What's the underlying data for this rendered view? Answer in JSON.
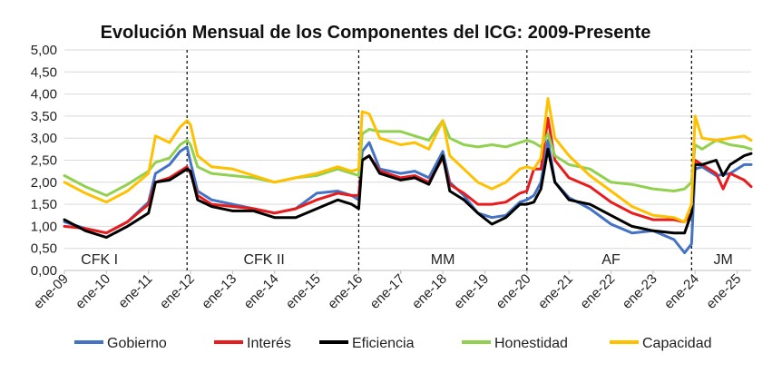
{
  "chart_data": {
    "type": "line",
    "title": "Evolución Mensual de los Componentes del ICG: 2009-Presente",
    "ylim": [
      0,
      5
    ],
    "yticks": [
      "0,00",
      "0,50",
      "1,00",
      "1,50",
      "2,00",
      "2,50",
      "3,00",
      "3,50",
      "4,00",
      "4,50",
      "5,00"
    ],
    "xlim": [
      0,
      196
    ],
    "xticks": [
      {
        "label": "ene-09",
        "x": 0
      },
      {
        "label": "ene-10",
        "x": 12
      },
      {
        "label": "ene-11",
        "x": 24
      },
      {
        "label": "ene-12",
        "x": 36
      },
      {
        "label": "ene-13",
        "x": 48
      },
      {
        "label": "ene-14",
        "x": 60
      },
      {
        "label": "ene-15",
        "x": 72
      },
      {
        "label": "ene-16",
        "x": 84
      },
      {
        "label": "ene-17",
        "x": 96
      },
      {
        "label": "ene-18",
        "x": 108
      },
      {
        "label": "ene-19",
        "x": 120
      },
      {
        "label": "ene-20",
        "x": 132
      },
      {
        "label": "ene-21",
        "x": 144
      },
      {
        "label": "ene-22",
        "x": 156
      },
      {
        "label": "ene-23",
        "x": 168
      },
      {
        "label": "ene-24",
        "x": 180
      },
      {
        "label": "ene-25",
        "x": 192
      }
    ],
    "grid": true,
    "legend_position": "bottom",
    "period_dividers": [
      35,
      84,
      132,
      179
    ],
    "periods": [
      {
        "label": "CFK I",
        "x": 10
      },
      {
        "label": "CFK II",
        "x": 57
      },
      {
        "label": "MM",
        "x": 108
      },
      {
        "label": "AF",
        "x": 156
      },
      {
        "label": "JM",
        "x": 188
      }
    ],
    "series": [
      {
        "name": "Gobierno",
        "color": "#4472C4",
        "points": [
          [
            0,
            1.1
          ],
          [
            6,
            0.95
          ],
          [
            12,
            0.85
          ],
          [
            18,
            1.1
          ],
          [
            24,
            1.55
          ],
          [
            26,
            2.2
          ],
          [
            30,
            2.4
          ],
          [
            33,
            2.7
          ],
          [
            35,
            2.8
          ],
          [
            36,
            2.45
          ],
          [
            38,
            1.8
          ],
          [
            42,
            1.6
          ],
          [
            48,
            1.5
          ],
          [
            54,
            1.4
          ],
          [
            60,
            1.3
          ],
          [
            66,
            1.4
          ],
          [
            72,
            1.75
          ],
          [
            78,
            1.8
          ],
          [
            82,
            1.7
          ],
          [
            84,
            1.6
          ],
          [
            85,
            2.7
          ],
          [
            87,
            2.9
          ],
          [
            90,
            2.3
          ],
          [
            96,
            2.2
          ],
          [
            100,
            2.25
          ],
          [
            104,
            2.1
          ],
          [
            108,
            2.7
          ],
          [
            110,
            2.0
          ],
          [
            114,
            1.7
          ],
          [
            118,
            1.3
          ],
          [
            122,
            1.2
          ],
          [
            126,
            1.25
          ],
          [
            130,
            1.55
          ],
          [
            132,
            1.6
          ],
          [
            134,
            1.7
          ],
          [
            136,
            2.0
          ],
          [
            138,
            2.95
          ],
          [
            140,
            2.0
          ],
          [
            144,
            1.65
          ],
          [
            150,
            1.4
          ],
          [
            156,
            1.05
          ],
          [
            162,
            0.85
          ],
          [
            168,
            0.9
          ],
          [
            174,
            0.7
          ],
          [
            177,
            0.4
          ],
          [
            179,
            0.6
          ],
          [
            180,
            2.3
          ],
          [
            182,
            2.35
          ],
          [
            186,
            2.15
          ],
          [
            190,
            2.2
          ],
          [
            194,
            2.4
          ],
          [
            196,
            2.4
          ]
        ]
      },
      {
        "name": "Interés",
        "color": "#E81C1C",
        "points": [
          [
            0,
            1.0
          ],
          [
            6,
            0.95
          ],
          [
            12,
            0.85
          ],
          [
            18,
            1.1
          ],
          [
            24,
            1.5
          ],
          [
            26,
            2.0
          ],
          [
            30,
            2.1
          ],
          [
            33,
            2.25
          ],
          [
            35,
            2.35
          ],
          [
            36,
            2.2
          ],
          [
            38,
            1.7
          ],
          [
            42,
            1.5
          ],
          [
            48,
            1.45
          ],
          [
            54,
            1.4
          ],
          [
            60,
            1.3
          ],
          [
            66,
            1.4
          ],
          [
            72,
            1.6
          ],
          [
            78,
            1.75
          ],
          [
            82,
            1.7
          ],
          [
            84,
            1.7
          ],
          [
            85,
            2.5
          ],
          [
            87,
            2.6
          ],
          [
            90,
            2.25
          ],
          [
            96,
            2.1
          ],
          [
            100,
            2.15
          ],
          [
            104,
            2.0
          ],
          [
            108,
            2.55
          ],
          [
            110,
            1.95
          ],
          [
            114,
            1.75
          ],
          [
            118,
            1.5
          ],
          [
            122,
            1.5
          ],
          [
            126,
            1.55
          ],
          [
            130,
            1.75
          ],
          [
            132,
            1.8
          ],
          [
            134,
            2.3
          ],
          [
            136,
            2.3
          ],
          [
            138,
            3.45
          ],
          [
            140,
            2.5
          ],
          [
            144,
            2.1
          ],
          [
            150,
            1.9
          ],
          [
            156,
            1.55
          ],
          [
            162,
            1.3
          ],
          [
            168,
            1.15
          ],
          [
            174,
            1.15
          ],
          [
            177,
            1.1
          ],
          [
            179,
            1.3
          ],
          [
            180,
            2.5
          ],
          [
            182,
            2.4
          ],
          [
            186,
            2.2
          ],
          [
            188,
            1.85
          ],
          [
            190,
            2.2
          ],
          [
            194,
            2.05
          ],
          [
            196,
            1.9
          ]
        ]
      },
      {
        "name": "Eficiencia",
        "color": "#000000",
        "points": [
          [
            0,
            1.15
          ],
          [
            6,
            0.9
          ],
          [
            12,
            0.75
          ],
          [
            18,
            1.0
          ],
          [
            24,
            1.3
          ],
          [
            26,
            2.0
          ],
          [
            30,
            2.05
          ],
          [
            33,
            2.2
          ],
          [
            35,
            2.3
          ],
          [
            36,
            2.25
          ],
          [
            38,
            1.6
          ],
          [
            42,
            1.45
          ],
          [
            48,
            1.35
          ],
          [
            54,
            1.35
          ],
          [
            60,
            1.2
          ],
          [
            66,
            1.2
          ],
          [
            72,
            1.4
          ],
          [
            78,
            1.6
          ],
          [
            82,
            1.5
          ],
          [
            84,
            1.4
          ],
          [
            85,
            2.5
          ],
          [
            87,
            2.6
          ],
          [
            90,
            2.2
          ],
          [
            96,
            2.05
          ],
          [
            100,
            2.1
          ],
          [
            104,
            1.95
          ],
          [
            108,
            2.6
          ],
          [
            110,
            1.8
          ],
          [
            114,
            1.6
          ],
          [
            118,
            1.3
          ],
          [
            122,
            1.05
          ],
          [
            126,
            1.2
          ],
          [
            130,
            1.5
          ],
          [
            132,
            1.5
          ],
          [
            134,
            1.55
          ],
          [
            136,
            1.85
          ],
          [
            138,
            2.75
          ],
          [
            140,
            2.0
          ],
          [
            144,
            1.6
          ],
          [
            150,
            1.5
          ],
          [
            156,
            1.25
          ],
          [
            162,
            1.0
          ],
          [
            168,
            0.9
          ],
          [
            174,
            0.85
          ],
          [
            177,
            0.85
          ],
          [
            179,
            1.3
          ],
          [
            180,
            2.4
          ],
          [
            182,
            2.4
          ],
          [
            186,
            2.5
          ],
          [
            188,
            2.15
          ],
          [
            190,
            2.4
          ],
          [
            194,
            2.6
          ],
          [
            196,
            2.65
          ]
        ]
      },
      {
        "name": "Honestidad",
        "color": "#92D050",
        "points": [
          [
            0,
            2.15
          ],
          [
            6,
            1.9
          ],
          [
            12,
            1.7
          ],
          [
            18,
            1.95
          ],
          [
            24,
            2.25
          ],
          [
            26,
            2.45
          ],
          [
            30,
            2.55
          ],
          [
            33,
            2.85
          ],
          [
            35,
            2.95
          ],
          [
            36,
            2.85
          ],
          [
            38,
            2.35
          ],
          [
            42,
            2.2
          ],
          [
            48,
            2.15
          ],
          [
            54,
            2.1
          ],
          [
            60,
            2.0
          ],
          [
            66,
            2.1
          ],
          [
            72,
            2.15
          ],
          [
            78,
            2.3
          ],
          [
            82,
            2.2
          ],
          [
            84,
            2.15
          ],
          [
            85,
            3.1
          ],
          [
            87,
            3.2
          ],
          [
            90,
            3.15
          ],
          [
            96,
            3.15
          ],
          [
            100,
            3.05
          ],
          [
            104,
            2.95
          ],
          [
            108,
            3.4
          ],
          [
            110,
            3.0
          ],
          [
            114,
            2.85
          ],
          [
            118,
            2.8
          ],
          [
            122,
            2.85
          ],
          [
            126,
            2.8
          ],
          [
            130,
            2.9
          ],
          [
            132,
            2.95
          ],
          [
            134,
            2.9
          ],
          [
            136,
            2.8
          ],
          [
            138,
            3.1
          ],
          [
            140,
            2.6
          ],
          [
            144,
            2.4
          ],
          [
            150,
            2.3
          ],
          [
            156,
            2.0
          ],
          [
            162,
            1.95
          ],
          [
            168,
            1.85
          ],
          [
            174,
            1.8
          ],
          [
            177,
            1.85
          ],
          [
            179,
            2.0
          ],
          [
            180,
            2.85
          ],
          [
            182,
            2.75
          ],
          [
            186,
            2.95
          ],
          [
            190,
            2.85
          ],
          [
            194,
            2.8
          ],
          [
            196,
            2.75
          ]
        ]
      },
      {
        "name": "Capacidad",
        "color": "#FFC000",
        "points": [
          [
            0,
            2.0
          ],
          [
            6,
            1.75
          ],
          [
            12,
            1.55
          ],
          [
            18,
            1.8
          ],
          [
            24,
            2.2
          ],
          [
            26,
            3.05
          ],
          [
            30,
            2.9
          ],
          [
            33,
            3.25
          ],
          [
            35,
            3.4
          ],
          [
            36,
            3.3
          ],
          [
            38,
            2.6
          ],
          [
            42,
            2.35
          ],
          [
            48,
            2.3
          ],
          [
            54,
            2.15
          ],
          [
            60,
            2.0
          ],
          [
            66,
            2.1
          ],
          [
            72,
            2.2
          ],
          [
            78,
            2.35
          ],
          [
            82,
            2.25
          ],
          [
            84,
            2.3
          ],
          [
            85,
            3.6
          ],
          [
            87,
            3.55
          ],
          [
            90,
            3.0
          ],
          [
            96,
            2.85
          ],
          [
            100,
            2.9
          ],
          [
            104,
            2.75
          ],
          [
            108,
            3.4
          ],
          [
            110,
            2.6
          ],
          [
            114,
            2.3
          ],
          [
            118,
            2.0
          ],
          [
            122,
            1.85
          ],
          [
            126,
            2.0
          ],
          [
            130,
            2.3
          ],
          [
            132,
            2.35
          ],
          [
            134,
            2.3
          ],
          [
            136,
            2.55
          ],
          [
            138,
            3.9
          ],
          [
            140,
            3.0
          ],
          [
            144,
            2.6
          ],
          [
            150,
            2.15
          ],
          [
            156,
            1.8
          ],
          [
            162,
            1.45
          ],
          [
            168,
            1.25
          ],
          [
            174,
            1.2
          ],
          [
            177,
            1.1
          ],
          [
            179,
            1.5
          ],
          [
            180,
            3.5
          ],
          [
            182,
            3.0
          ],
          [
            186,
            2.95
          ],
          [
            190,
            3.0
          ],
          [
            194,
            3.05
          ],
          [
            196,
            2.95
          ]
        ]
      }
    ]
  }
}
